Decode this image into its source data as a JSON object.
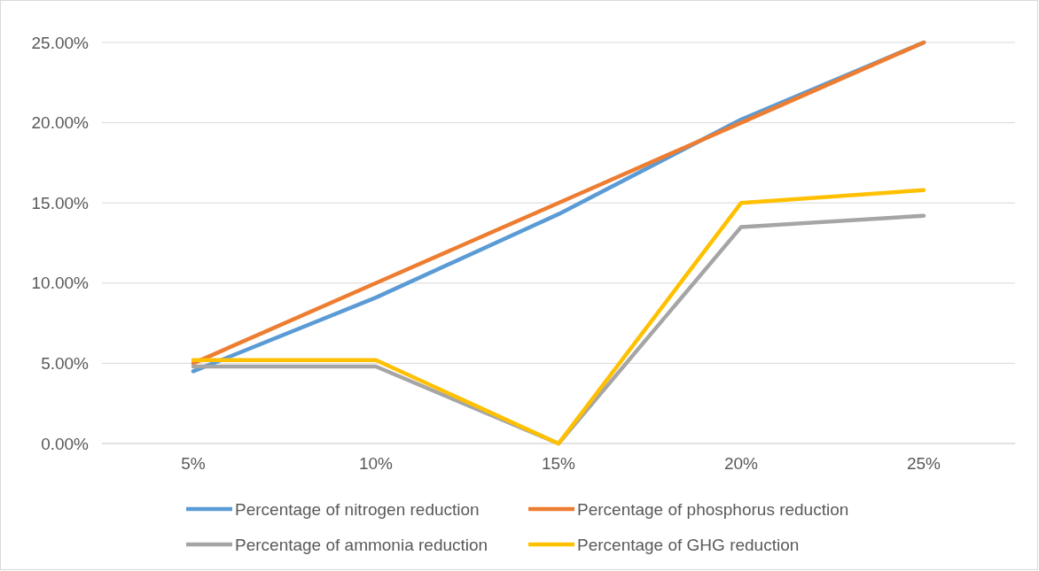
{
  "chart_data": {
    "type": "line",
    "categories": [
      "5%",
      "10%",
      "15%",
      "20%",
      "25%"
    ],
    "series": [
      {
        "name": "Percentage of nitrogen reduction",
        "color": "#5b9bd5",
        "values": [
          4.5,
          9.1,
          14.3,
          20.2,
          25
        ]
      },
      {
        "name": "Percentage of phosphorus reduction",
        "color": "#ed7d31",
        "values": [
          5,
          10,
          15,
          20,
          25
        ]
      },
      {
        "name": "Percentage of ammonia reduction",
        "color": "#a5a5a5",
        "values": [
          4.8,
          4.8,
          0,
          13.5,
          14.2
        ]
      },
      {
        "name": "Percentage of GHG reduction",
        "color": "#ffc000",
        "values": [
          5.2,
          5.2,
          0,
          15,
          15.8
        ]
      }
    ],
    "ylim": [
      0,
      25
    ],
    "yticks": [
      {
        "value": 0,
        "label": "0.00%"
      },
      {
        "value": 5,
        "label": "5.00%"
      },
      {
        "value": 10,
        "label": "10.00%"
      },
      {
        "value": 15,
        "label": "15.00%"
      },
      {
        "value": 20,
        "label": "20.00%"
      },
      {
        "value": 25,
        "label": "25.00%"
      }
    ],
    "grid": "y",
    "legend": "bottom",
    "line_style": "solid"
  }
}
